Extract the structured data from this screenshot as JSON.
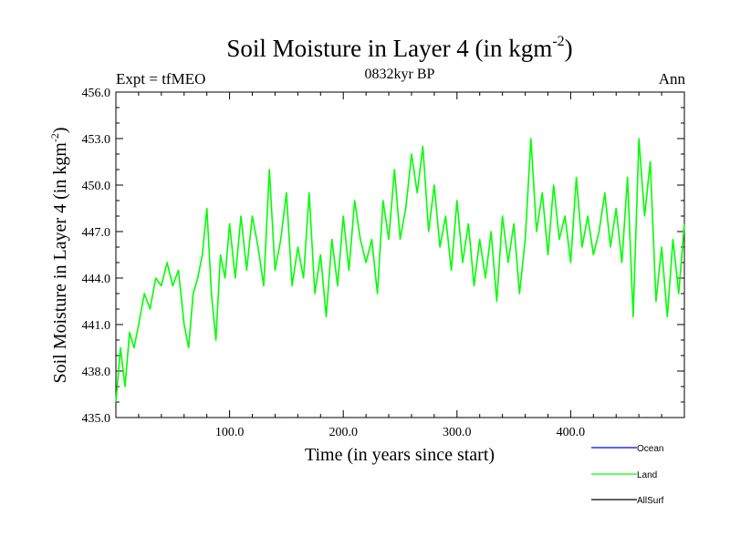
{
  "chart_data": {
    "type": "line",
    "title_main": "Soil Moisture in Layer 4 (in kgm",
    "title_sup": "-2",
    "title_close": ")",
    "subtitle": "0832kyr BP",
    "left_label": "Expt = tfMEO",
    "right_label": "Ann",
    "xlabel": "Time (in years since start)",
    "ylabel_main": "Soil Moisture in Layer 4 (in kgm",
    "ylabel_sup": "-2",
    "ylabel_close": ")",
    "xlim": [
      0,
      500
    ],
    "ylim": [
      435.0,
      456.0
    ],
    "xticks": [
      {
        "value": 100,
        "label": "100.0"
      },
      {
        "value": 200,
        "label": "200.0"
      },
      {
        "value": 300,
        "label": "300.0"
      },
      {
        "value": 400,
        "label": "400.0"
      }
    ],
    "yticks": [
      {
        "value": 435,
        "label": "435.0"
      },
      {
        "value": 438,
        "label": "438.0"
      },
      {
        "value": 441,
        "label": "441.0"
      },
      {
        "value": 444,
        "label": "444.0"
      },
      {
        "value": 447,
        "label": "447.0"
      },
      {
        "value": 450,
        "label": "450.0"
      },
      {
        "value": 453,
        "label": "453.0"
      },
      {
        "value": 456,
        "label": "456.0"
      }
    ],
    "legend": [
      {
        "name": "Ocean",
        "color": "#0000ff"
      },
      {
        "name": "Land",
        "color": "#00ff00"
      },
      {
        "name": "AllSurf",
        "color": "#000000"
      }
    ],
    "series": [
      {
        "name": "Land",
        "color": "#00ff00",
        "x": [
          0,
          4,
          8,
          12,
          16,
          20,
          25,
          30,
          35,
          40,
          45,
          50,
          55,
          60,
          64,
          68,
          72,
          76,
          80,
          84,
          88,
          92,
          96,
          100,
          105,
          110,
          115,
          120,
          125,
          130,
          135,
          140,
          145,
          150,
          155,
          160,
          165,
          170,
          175,
          180,
          185,
          190,
          195,
          200,
          205,
          210,
          215,
          220,
          225,
          230,
          235,
          240,
          245,
          250,
          255,
          260,
          265,
          270,
          275,
          280,
          285,
          290,
          295,
          300,
          305,
          310,
          315,
          320,
          325,
          330,
          335,
          340,
          345,
          350,
          355,
          360,
          365,
          370,
          375,
          380,
          385,
          390,
          395,
          400,
          405,
          410,
          415,
          420,
          425,
          430,
          435,
          440,
          445,
          450,
          455,
          460,
          465,
          470,
          475,
          480,
          485,
          490,
          495,
          500
        ],
        "values": [
          436.0,
          439.5,
          437.0,
          440.5,
          439.5,
          441.0,
          443.0,
          442.0,
          444.0,
          443.5,
          445.0,
          443.5,
          444.5,
          441.0,
          439.5,
          443.0,
          444.0,
          445.5,
          448.5,
          443.0,
          440.0,
          445.5,
          444.0,
          447.5,
          444.0,
          448.0,
          444.5,
          448.0,
          446.0,
          443.5,
          451.0,
          444.5,
          446.5,
          449.5,
          443.5,
          446.0,
          444.0,
          449.5,
          443.0,
          445.5,
          441.5,
          446.5,
          443.5,
          448.0,
          444.5,
          449.0,
          446.5,
          445.0,
          446.5,
          443.0,
          449.0,
          446.5,
          451.0,
          446.5,
          448.5,
          452.0,
          449.5,
          452.5,
          447.0,
          450.0,
          446.0,
          448.0,
          444.5,
          449.0,
          445.0,
          447.5,
          443.5,
          446.5,
          444.0,
          447.0,
          442.5,
          448.0,
          445.0,
          447.5,
          443.0,
          446.5,
          453.0,
          447.0,
          449.5,
          445.5,
          450.0,
          446.5,
          448.0,
          445.0,
          450.5,
          446.0,
          448.0,
          445.5,
          447.0,
          449.5,
          446.0,
          448.5,
          445.0,
          450.5,
          441.5,
          453.0,
          448.0,
          451.5,
          442.5,
          446.0,
          441.5,
          446.5,
          443.0,
          447.5
        ]
      }
    ]
  }
}
